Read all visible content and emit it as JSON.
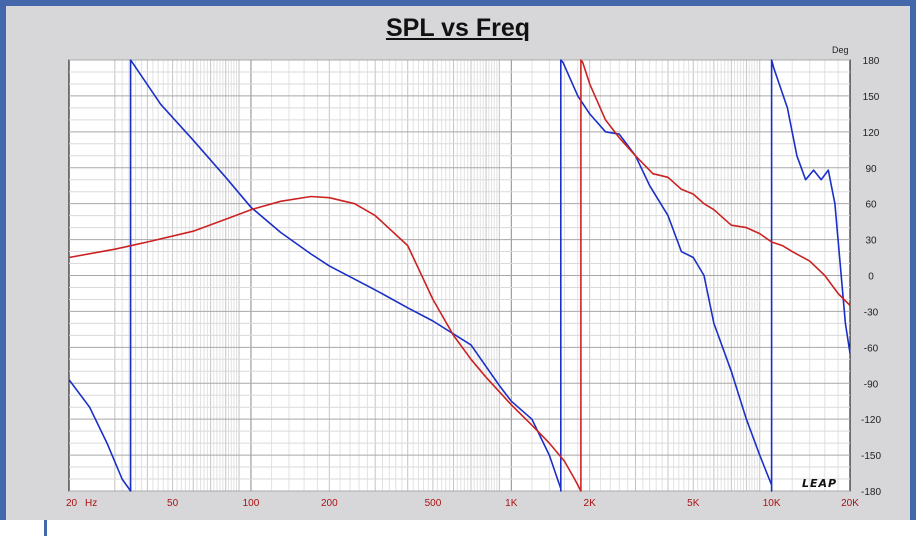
{
  "chart_data": {
    "type": "line",
    "title": "SPL vs Freq",
    "xlabel": "",
    "ylabel": "",
    "y_unit_label": "Deg",
    "x_unit_label": "Hz",
    "x_scale": "log",
    "xlim": [
      20,
      20000
    ],
    "ylim": [
      -180,
      180
    ],
    "grid": true,
    "legend": "none",
    "watermark": "LEAP",
    "x_ticks": [
      {
        "value": 20,
        "label": "20"
      },
      {
        "value": 50,
        "label": "50"
      },
      {
        "value": 100,
        "label": "100"
      },
      {
        "value": 200,
        "label": "200"
      },
      {
        "value": 500,
        "label": "500"
      },
      {
        "value": 1000,
        "label": "1K"
      },
      {
        "value": 2000,
        "label": "2K"
      },
      {
        "value": 5000,
        "label": "5K"
      },
      {
        "value": 10000,
        "label": "10K"
      },
      {
        "value": 20000,
        "label": "20K"
      }
    ],
    "y_ticks": [
      180,
      150,
      120,
      90,
      60,
      30,
      0,
      -30,
      -60,
      -90,
      -120,
      -150,
      -180
    ],
    "series": [
      {
        "color": "#1a2fc8",
        "points": [
          [
            20,
            -87
          ],
          [
            24,
            -110
          ],
          [
            28,
            -140
          ],
          [
            32,
            -170
          ],
          [
            34.5,
            -180
          ],
          [
            35,
            178
          ],
          [
            45,
            143
          ],
          [
            60,
            113
          ],
          [
            80,
            82
          ],
          [
            100,
            57
          ],
          [
            130,
            36
          ],
          [
            170,
            18
          ],
          [
            200,
            8
          ],
          [
            300,
            -12
          ],
          [
            400,
            -27
          ],
          [
            500,
            -38
          ],
          [
            700,
            -58
          ],
          [
            900,
            -92
          ],
          [
            1000,
            -105
          ],
          [
            1200,
            -120
          ],
          [
            1400,
            -150
          ],
          [
            1550,
            -178
          ],
          [
            1580,
            178
          ],
          [
            1800,
            150
          ],
          [
            2000,
            135
          ],
          [
            2300,
            120
          ],
          [
            2600,
            118
          ],
          [
            3000,
            100
          ],
          [
            3400,
            75
          ],
          [
            4000,
            50
          ],
          [
            4500,
            20
          ],
          [
            5000,
            15
          ],
          [
            5500,
            0
          ],
          [
            6000,
            -40
          ],
          [
            7000,
            -80
          ],
          [
            8000,
            -120
          ],
          [
            9000,
            -150
          ],
          [
            10000,
            -175
          ],
          [
            10200,
            173
          ],
          [
            11500,
            140
          ],
          [
            12500,
            100
          ],
          [
            13500,
            80
          ],
          [
            14500,
            88
          ],
          [
            15500,
            80
          ],
          [
            16500,
            88
          ],
          [
            17500,
            60
          ],
          [
            18500,
            0
          ],
          [
            19200,
            -40
          ],
          [
            20000,
            -65
          ]
        ]
      },
      {
        "color": "#cc2222",
        "points": [
          [
            20,
            15
          ],
          [
            30,
            22
          ],
          [
            40,
            28
          ],
          [
            60,
            37
          ],
          [
            80,
            47
          ],
          [
            100,
            55
          ],
          [
            130,
            62
          ],
          [
            170,
            66
          ],
          [
            200,
            65
          ],
          [
            250,
            60
          ],
          [
            300,
            50
          ],
          [
            400,
            25
          ],
          [
            500,
            -20
          ],
          [
            600,
            -50
          ],
          [
            700,
            -70
          ],
          [
            800,
            -85
          ],
          [
            1000,
            -108
          ],
          [
            1200,
            -125
          ],
          [
            1400,
            -140
          ],
          [
            1600,
            -155
          ],
          [
            1750,
            -170
          ],
          [
            1850,
            -180
          ],
          [
            1880,
            178
          ],
          [
            2000,
            160
          ],
          [
            2300,
            130
          ],
          [
            2600,
            115
          ],
          [
            3000,
            100
          ],
          [
            3500,
            85
          ],
          [
            4000,
            82
          ],
          [
            4500,
            72
          ],
          [
            5000,
            68
          ],
          [
            5500,
            60
          ],
          [
            6000,
            55
          ],
          [
            7000,
            42
          ],
          [
            8000,
            40
          ],
          [
            9000,
            35
          ],
          [
            10000,
            28
          ],
          [
            11000,
            25
          ],
          [
            12000,
            20
          ],
          [
            14000,
            12
          ],
          [
            16000,
            0
          ],
          [
            18000,
            -15
          ],
          [
            20000,
            -25
          ]
        ]
      }
    ]
  }
}
